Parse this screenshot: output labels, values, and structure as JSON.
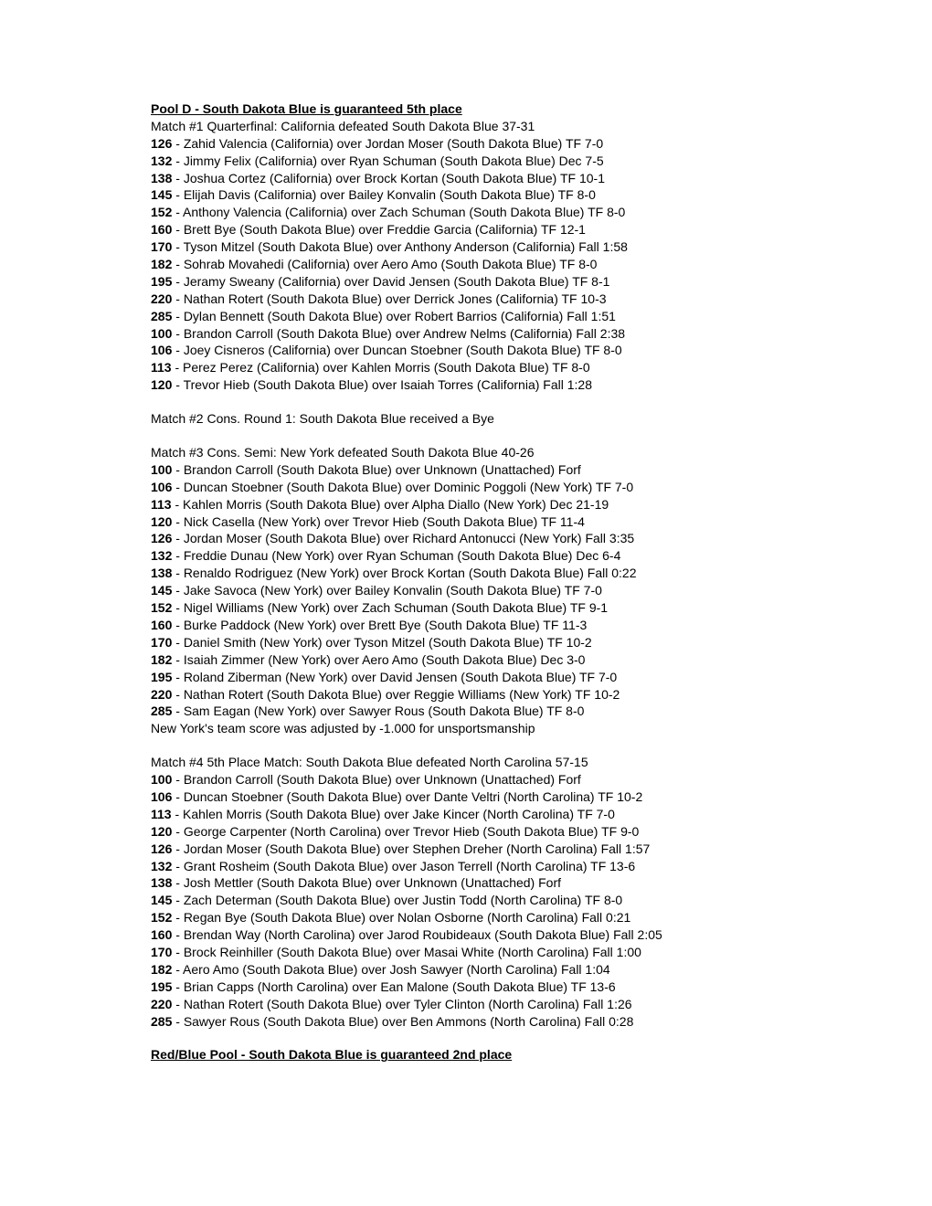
{
  "sections": [
    {
      "header": "Pool D - South Dakota Blue is guaranteed 5th place",
      "matches": [
        {
          "title": "Match #1 Quarterfinal: California defeated South Dakota Blue 37-31",
          "bouts": [
            {
              "wt": "126",
              "text": "Zahid Valencia (California) over Jordan Moser (South Dakota Blue) TF 7-0"
            },
            {
              "wt": "132",
              "text": "Jimmy Felix (California) over Ryan Schuman (South Dakota Blue) Dec 7-5"
            },
            {
              "wt": "138",
              "text": "Joshua Cortez (California) over Brock Kortan (South Dakota Blue) TF 10-1"
            },
            {
              "wt": "145",
              "text": "Elijah Davis (California) over Bailey Konvalin (South Dakota Blue) TF 8-0"
            },
            {
              "wt": "152",
              "text": "Anthony Valencia (California) over Zach Schuman (South Dakota Blue) TF 8-0"
            },
            {
              "wt": "160",
              "text": "Brett Bye (South Dakota Blue) over Freddie Garcia (California) TF 12-1"
            },
            {
              "wt": "170",
              "text": "Tyson Mitzel (South Dakota Blue) over Anthony Anderson (California) Fall 1:58"
            },
            {
              "wt": "182",
              "text": "Sohrab Movahedi (California) over Aero Amo (South Dakota Blue) TF 8-0"
            },
            {
              "wt": "195",
              "text": "Jeramy Sweany (California) over David Jensen (South Dakota Blue) TF 8-1"
            },
            {
              "wt": "220",
              "text": "Nathan Rotert (South Dakota Blue) over Derrick Jones (California) TF 10-3"
            },
            {
              "wt": "285",
              "text": "Dylan Bennett (South Dakota Blue) over Robert Barrios (California) Fall 1:51"
            },
            {
              "wt": "100",
              "text": "Brandon Carroll (South Dakota Blue) over Andrew Nelms (California) Fall 2:38"
            },
            {
              "wt": "106",
              "text": "Joey Cisneros (California) over Duncan Stoebner (South Dakota Blue) TF 8-0"
            },
            {
              "wt": "113",
              "text": "Perez Perez (California) over Kahlen Morris (South Dakota Blue) TF 8-0"
            },
            {
              "wt": "120",
              "text": "Trevor Hieb (South Dakota Blue) over Isaiah Torres (California) Fall 1:28"
            }
          ],
          "notes": []
        },
        {
          "title": "Match #2 Cons. Round 1: South Dakota Blue received a Bye",
          "bouts": [],
          "notes": []
        },
        {
          "title": "Match #3 Cons. Semi: New York defeated South Dakota Blue 40-26",
          "bouts": [
            {
              "wt": "100",
              "text": "Brandon Carroll (South Dakota Blue) over Unknown (Unattached) Forf"
            },
            {
              "wt": "106",
              "text": "Duncan Stoebner (South Dakota Blue) over Dominic Poggoli (New York) TF 7-0"
            },
            {
              "wt": "113",
              "text": "Kahlen Morris (South Dakota Blue) over Alpha Diallo (New York) Dec 21-19"
            },
            {
              "wt": "120",
              "text": "Nick Casella (New York) over Trevor Hieb (South Dakota Blue) TF 11-4"
            },
            {
              "wt": "126",
              "text": "Jordan Moser (South Dakota Blue) over Richard Antonucci (New York) Fall 3:35"
            },
            {
              "wt": "132",
              "text": "Freddie Dunau (New York) over Ryan Schuman (South Dakota Blue) Dec 6-4"
            },
            {
              "wt": "138",
              "text": "Renaldo Rodriguez (New York) over Brock Kortan (South Dakota Blue) Fall 0:22"
            },
            {
              "wt": "145",
              "text": "Jake Savoca (New York) over Bailey Konvalin (South Dakota Blue) TF 7-0"
            },
            {
              "wt": "152",
              "text": "Nigel Williams (New York) over Zach Schuman (South Dakota Blue) TF 9-1"
            },
            {
              "wt": "160",
              "text": "Burke Paddock (New York) over Brett Bye (South Dakota Blue) TF 11-3"
            },
            {
              "wt": "170",
              "text": "Daniel Smith (New York) over Tyson Mitzel (South Dakota Blue) TF 10-2"
            },
            {
              "wt": "182",
              "text": "Isaiah Zimmer (New York) over Aero Amo (South Dakota Blue) Dec 3-0"
            },
            {
              "wt": "195",
              "text": "Roland Ziberman (New York) over David Jensen (South Dakota Blue) TF 7-0"
            },
            {
              "wt": "220",
              "text": "Nathan Rotert (South Dakota Blue) over Reggie Williams (New York) TF 10-2"
            },
            {
              "wt": "285",
              "text": "Sam Eagan (New York) over Sawyer Rous (South Dakota Blue) TF 8-0"
            }
          ],
          "notes": [
            "New York's team score was adjusted by -1.000 for unsportsmanship"
          ]
        },
        {
          "title": "Match #4 5th Place Match: South Dakota Blue defeated North Carolina 57-15",
          "bouts": [
            {
              "wt": "100",
              "text": "Brandon Carroll (South Dakota Blue) over Unknown (Unattached) Forf"
            },
            {
              "wt": "106",
              "text": "Duncan Stoebner (South Dakota Blue) over Dante Veltri (North Carolina) TF 10-2"
            },
            {
              "wt": "113",
              "text": "Kahlen Morris (South Dakota Blue) over Jake Kincer (North Carolina) TF 7-0"
            },
            {
              "wt": "120",
              "text": "George Carpenter (North Carolina) over Trevor Hieb (South Dakota Blue) TF 9-0"
            },
            {
              "wt": "126",
              "text": "Jordan Moser (South Dakota Blue) over Stephen Dreher (North Carolina) Fall 1:57"
            },
            {
              "wt": "132",
              "text": "Grant Rosheim (South Dakota Blue) over Jason Terrell (North Carolina) TF 13-6"
            },
            {
              "wt": "138",
              "text": "Josh Mettler (South Dakota Blue) over Unknown (Unattached) Forf"
            },
            {
              "wt": "145",
              "text": "Zach Determan (South Dakota Blue) over Justin Todd (North Carolina) TF 8-0"
            },
            {
              "wt": "152",
              "text": "Regan Bye (South Dakota Blue) over Nolan Osborne (North Carolina) Fall 0:21"
            },
            {
              "wt": "160",
              "text": "Brendan Way (North Carolina) over Jarod Roubideaux (South Dakota Blue) Fall 2:05"
            },
            {
              "wt": "170",
              "text": "Brock Reinhiller (South Dakota Blue) over Masai White (North Carolina) Fall 1:00"
            },
            {
              "wt": "182",
              "text": "Aero Amo (South Dakota Blue) over Josh Sawyer (North Carolina) Fall 1:04"
            },
            {
              "wt": "195",
              "text": "Brian Capps (North Carolina) over Ean Malone (South Dakota Blue) TF 13-6"
            },
            {
              "wt": "220",
              "text": "Nathan Rotert (South Dakota Blue) over Tyler Clinton (North Carolina) Fall 1:26"
            },
            {
              "wt": "285",
              "text": "Sawyer Rous (South Dakota Blue) over Ben Ammons (North Carolina) Fall 0:28"
            }
          ],
          "notes": []
        }
      ]
    },
    {
      "header": "Red/Blue Pool - South Dakota Blue is guaranteed 2nd place",
      "matches": []
    }
  ]
}
